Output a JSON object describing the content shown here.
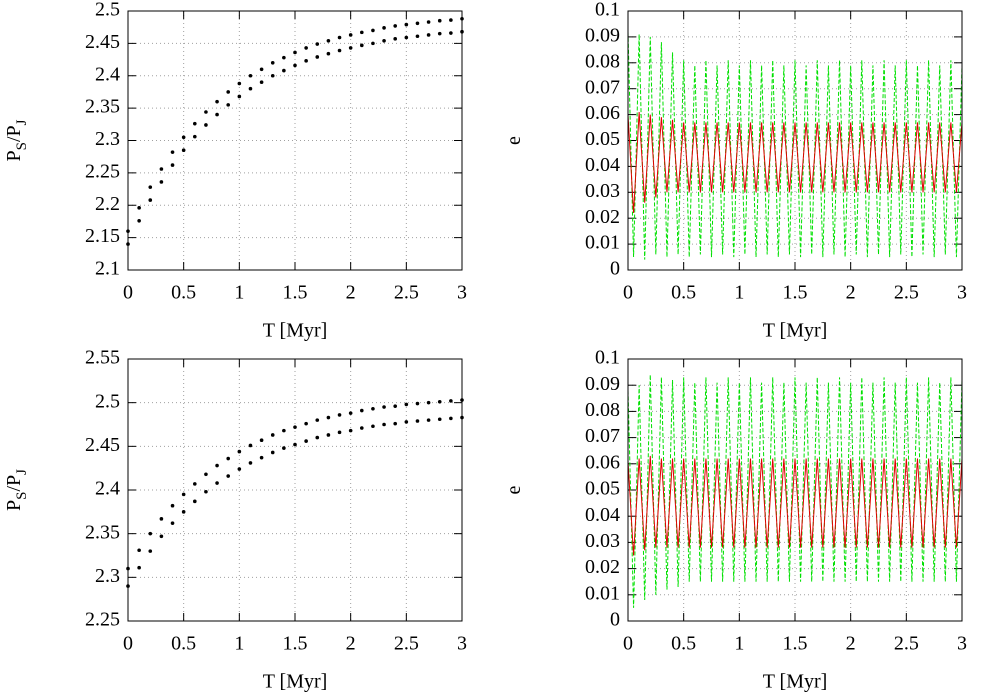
{
  "chart_data": [
    {
      "type": "scatter",
      "xlabel": "T [Myr]",
      "ylabel": [
        "P",
        "S",
        "/P",
        "J"
      ],
      "x": [
        0,
        0.1,
        0.2,
        0.3,
        0.4,
        0.5,
        0.6,
        0.7,
        0.8,
        0.9,
        1,
        1.1,
        1.2,
        1.3,
        1.4,
        1.5,
        1.6,
        1.7,
        1.8,
        1.9,
        2,
        2.1,
        2.2,
        2.3,
        2.4,
        2.5,
        2.6,
        2.7,
        2.8,
        2.9,
        3
      ],
      "series": [
        {
          "color": "#000000",
          "values": [
            2.16,
            2.196,
            2.228,
            2.256,
            2.282,
            2.305,
            2.326,
            2.344,
            2.36,
            2.375,
            2.388,
            2.4,
            2.41,
            2.42,
            2.428,
            2.436,
            2.443,
            2.449,
            2.454,
            2.459,
            2.463,
            2.467,
            2.47,
            2.474,
            2.477,
            2.479,
            2.481,
            2.483,
            2.485,
            2.486,
            2.488
          ]
        },
        {
          "color": "#000000",
          "values": [
            2.14,
            2.176,
            2.208,
            2.236,
            2.262,
            2.285,
            2.306,
            2.324,
            2.34,
            2.355,
            2.368,
            2.38,
            2.39,
            2.4,
            2.408,
            2.416,
            2.423,
            2.429,
            2.434,
            2.439,
            2.443,
            2.447,
            2.45,
            2.454,
            2.457,
            2.459,
            2.461,
            2.463,
            2.465,
            2.466,
            2.468
          ]
        }
      ],
      "xlim": [
        0,
        3
      ],
      "xticks": [
        0,
        0.5,
        1,
        1.5,
        2,
        2.5,
        3
      ],
      "ylim": [
        2.1,
        2.5
      ],
      "yticks": [
        2.1,
        2.15,
        2.2,
        2.25,
        2.3,
        2.35,
        2.4,
        2.45,
        2.5
      ],
      "grid": true
    },
    {
      "type": "line",
      "xlabel": "T [Myr]",
      "ylabel": [
        "e"
      ],
      "x": [
        0,
        0.05,
        0.1,
        0.15,
        0.2,
        0.25,
        0.3,
        0.35,
        0.4,
        0.45,
        0.5,
        0.55,
        0.6,
        0.65,
        0.7,
        0.75,
        0.8,
        0.85,
        0.9,
        0.95,
        1,
        1.05,
        1.1,
        1.15,
        1.2,
        1.25,
        1.3,
        1.35,
        1.4,
        1.45,
        1.5,
        1.55,
        1.6,
        1.65,
        1.7,
        1.75,
        1.8,
        1.85,
        1.9,
        1.95,
        2,
        2.05,
        2.1,
        2.15,
        2.2,
        2.25,
        2.3,
        2.35,
        2.4,
        2.45,
        2.5,
        2.55,
        2.6,
        2.65,
        2.7,
        2.75,
        2.8,
        2.85,
        2.9,
        2.95,
        3
      ],
      "series": [
        {
          "color": "#00e000",
          "dash": true,
          "values": [
            0.092,
            0.005,
            0.091,
            0.004,
            0.09,
            0.006,
            0.088,
            0.005,
            0.084,
            0.006,
            0.081,
            0.005,
            0.079,
            0.006,
            0.081,
            0.005,
            0.079,
            0.006,
            0.081,
            0.005,
            0.079,
            0.006,
            0.081,
            0.005,
            0.079,
            0.006,
            0.081,
            0.005,
            0.079,
            0.006,
            0.081,
            0.005,
            0.079,
            0.006,
            0.081,
            0.005,
            0.079,
            0.006,
            0.081,
            0.005,
            0.079,
            0.006,
            0.081,
            0.005,
            0.079,
            0.006,
            0.081,
            0.005,
            0.079,
            0.006,
            0.081,
            0.005,
            0.079,
            0.006,
            0.081,
            0.005,
            0.079,
            0.006,
            0.081,
            0.005,
            0.079
          ]
        },
        {
          "color": "#e00000",
          "dash": false,
          "values": [
            0.06,
            0.022,
            0.061,
            0.026,
            0.06,
            0.028,
            0.059,
            0.03,
            0.058,
            0.03,
            0.057,
            0.03,
            0.057,
            0.03,
            0.057,
            0.03,
            0.057,
            0.03,
            0.057,
            0.03,
            0.057,
            0.03,
            0.057,
            0.03,
            0.057,
            0.03,
            0.057,
            0.03,
            0.057,
            0.03,
            0.057,
            0.03,
            0.057,
            0.03,
            0.057,
            0.03,
            0.057,
            0.03,
            0.057,
            0.03,
            0.057,
            0.03,
            0.057,
            0.03,
            0.057,
            0.03,
            0.057,
            0.03,
            0.057,
            0.03,
            0.057,
            0.03,
            0.057,
            0.03,
            0.057,
            0.03,
            0.057,
            0.03,
            0.057,
            0.03,
            0.057
          ]
        }
      ],
      "xlim": [
        0,
        3
      ],
      "xticks": [
        0,
        0.5,
        1,
        1.5,
        2,
        2.5,
        3
      ],
      "ylim": [
        0,
        0.1
      ],
      "yticks": [
        0,
        0.01,
        0.02,
        0.03,
        0.04,
        0.05,
        0.06,
        0.07,
        0.08,
        0.09,
        0.1
      ],
      "grid": true
    },
    {
      "type": "scatter",
      "xlabel": "T [Myr]",
      "ylabel": [
        "P",
        "S",
        "/P",
        "J"
      ],
      "x": [
        0,
        0.1,
        0.2,
        0.3,
        0.4,
        0.5,
        0.6,
        0.7,
        0.8,
        0.9,
        1,
        1.1,
        1.2,
        1.3,
        1.4,
        1.5,
        1.6,
        1.7,
        1.8,
        1.9,
        2,
        2.1,
        2.2,
        2.3,
        2.4,
        2.5,
        2.6,
        2.7,
        2.8,
        2.9,
        3
      ],
      "series": [
        {
          "color": "#000000",
          "values": [
            2.31,
            2.331,
            2.35,
            2.367,
            2.382,
            2.395,
            2.407,
            2.418,
            2.428,
            2.436,
            2.444,
            2.451,
            2.457,
            2.463,
            2.468,
            2.472,
            2.476,
            2.48,
            2.483,
            2.486,
            2.488,
            2.491,
            2.493,
            2.495,
            2.496,
            2.498,
            2.499,
            2.5,
            2.501,
            2.502,
            2.503
          ]
        },
        {
          "color": "#000000",
          "values": [
            2.29,
            2.311,
            2.33,
            2.347,
            2.362,
            2.375,
            2.387,
            2.398,
            2.408,
            2.416,
            2.424,
            2.431,
            2.437,
            2.443,
            2.448,
            2.452,
            2.456,
            2.46,
            2.463,
            2.466,
            2.468,
            2.471,
            2.473,
            2.475,
            2.476,
            2.478,
            2.479,
            2.48,
            2.481,
            2.482,
            2.483
          ]
        }
      ],
      "xlim": [
        0,
        3
      ],
      "xticks": [
        0,
        0.5,
        1,
        1.5,
        2,
        2.5,
        3
      ],
      "ylim": [
        2.25,
        2.55
      ],
      "yticks": [
        2.25,
        2.3,
        2.35,
        2.4,
        2.45,
        2.5,
        2.55
      ],
      "grid": true
    },
    {
      "type": "line",
      "xlabel": "T [Myr]",
      "ylabel": [
        "e"
      ],
      "x": [
        0,
        0.05,
        0.1,
        0.15,
        0.2,
        0.25,
        0.3,
        0.35,
        0.4,
        0.45,
        0.5,
        0.55,
        0.6,
        0.65,
        0.7,
        0.75,
        0.8,
        0.85,
        0.9,
        0.95,
        1,
        1.05,
        1.1,
        1.15,
        1.2,
        1.25,
        1.3,
        1.35,
        1.4,
        1.45,
        1.5,
        1.55,
        1.6,
        1.65,
        1.7,
        1.75,
        1.8,
        1.85,
        1.9,
        1.95,
        2,
        2.05,
        2.1,
        2.15,
        2.2,
        2.25,
        2.3,
        2.35,
        2.4,
        2.45,
        2.5,
        2.55,
        2.6,
        2.65,
        2.7,
        2.75,
        2.8,
        2.85,
        2.9,
        2.95,
        3
      ],
      "series": [
        {
          "color": "#00e000",
          "dash": true,
          "values": [
            0.088,
            0.005,
            0.09,
            0.008,
            0.094,
            0.01,
            0.093,
            0.012,
            0.092,
            0.013,
            0.093,
            0.015,
            0.091,
            0.015,
            0.093,
            0.015,
            0.091,
            0.015,
            0.093,
            0.015,
            0.091,
            0.015,
            0.093,
            0.015,
            0.091,
            0.015,
            0.093,
            0.015,
            0.091,
            0.015,
            0.093,
            0.015,
            0.091,
            0.015,
            0.093,
            0.015,
            0.091,
            0.015,
            0.093,
            0.015,
            0.091,
            0.015,
            0.093,
            0.015,
            0.091,
            0.015,
            0.093,
            0.015,
            0.091,
            0.015,
            0.093,
            0.015,
            0.091,
            0.015,
            0.093,
            0.015,
            0.091,
            0.015,
            0.093,
            0.015,
            0.092
          ]
        },
        {
          "color": "#e00000",
          "dash": false,
          "values": [
            0.061,
            0.025,
            0.062,
            0.027,
            0.063,
            0.028,
            0.062,
            0.028,
            0.062,
            0.028,
            0.062,
            0.028,
            0.062,
            0.028,
            0.062,
            0.028,
            0.062,
            0.028,
            0.062,
            0.028,
            0.062,
            0.028,
            0.062,
            0.028,
            0.062,
            0.028,
            0.062,
            0.028,
            0.062,
            0.028,
            0.062,
            0.028,
            0.062,
            0.028,
            0.062,
            0.028,
            0.062,
            0.028,
            0.062,
            0.028,
            0.062,
            0.028,
            0.062,
            0.028,
            0.062,
            0.028,
            0.062,
            0.028,
            0.062,
            0.028,
            0.062,
            0.028,
            0.062,
            0.028,
            0.062,
            0.028,
            0.062,
            0.028,
            0.062,
            0.028,
            0.062
          ]
        }
      ],
      "xlim": [
        0,
        3
      ],
      "xticks": [
        0,
        0.5,
        1,
        1.5,
        2,
        2.5,
        3
      ],
      "ylim": [
        0,
        0.1
      ],
      "yticks": [
        0,
        0.01,
        0.02,
        0.03,
        0.04,
        0.05,
        0.06,
        0.07,
        0.08,
        0.09,
        0.1
      ],
      "grid": true
    }
  ]
}
